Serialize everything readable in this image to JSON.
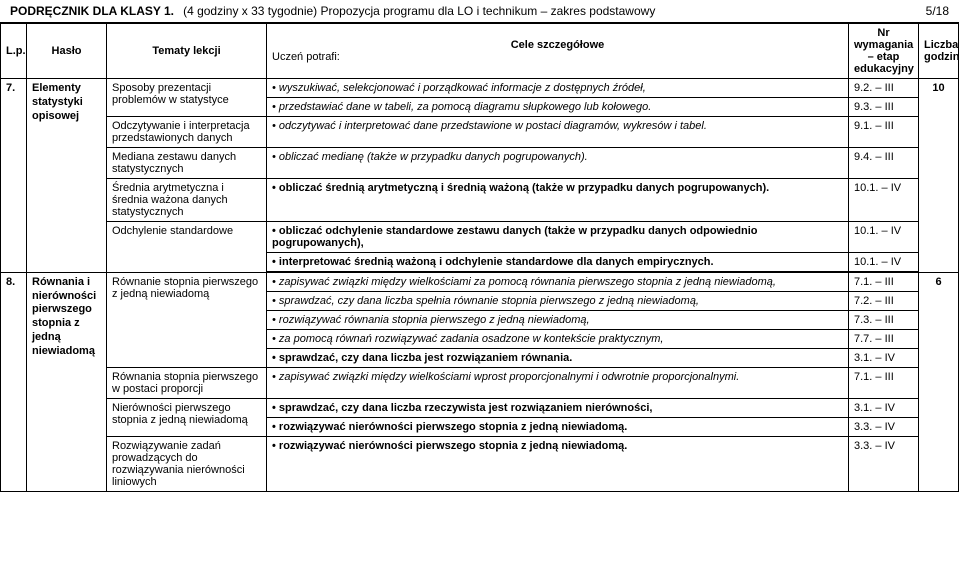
{
  "header": {
    "title_bold": "PODRĘCZNIK DLA KLASY 1.",
    "title_rest": "(4 godziny x 33 tygodnie)  Propozycja programu dla LO i technikum – zakres podstawowy",
    "page_num": "5/18"
  },
  "thead": {
    "lp": "L.p.",
    "haslo": "Hasło",
    "tematy": "Tematy lekcji",
    "cele": "Cele szczegółowe",
    "uczen": "Uczeń potrafi:",
    "wym": "Nr wymagania – etap edukacyjny",
    "lg": "Liczba godzin"
  },
  "sec7": {
    "num": "7.",
    "haslo": "Elementy statystyki opisowej",
    "hours": "10",
    "rows": [
      {
        "topic": "Sposoby prezentacji problemów w statystyce",
        "goals": [
          {
            "text": "wyszukiwać, selekcjonować i porządkować informacje z dostępnych źródeł,",
            "ital": true,
            "req": "9.2. – III"
          },
          {
            "text": "przedstawiać dane w tabeli, za pomocą diagramu słupkowego lub kołowego.",
            "ital": true,
            "req": "9.3. – III"
          }
        ]
      },
      {
        "topic": "Odczytywanie i interpretacja przedstawionych danych",
        "goals": [
          {
            "text": "odczytywać i interpretować dane przedstawione w postaci diagramów, wykresów i tabel.",
            "ital": true,
            "req": "9.1. – III"
          }
        ]
      },
      {
        "topic": "Mediana zestawu danych statystycznych",
        "goals": [
          {
            "text": "obliczać medianę (także w przypadku danych pogrupowanych).",
            "ital": true,
            "req": "9.4. – III"
          }
        ]
      },
      {
        "topic": "Średnia arytmetyczna i średnia ważona danych statystycznych",
        "goals": [
          {
            "text": "obliczać średnią arytmetyczną i średnią ważoną (także w przypadku danych pogrupowanych).",
            "bold": true,
            "req": "10.1. – IV"
          }
        ]
      },
      {
        "topic": "Odchylenie standardowe",
        "goals": [
          {
            "text": "obliczać odchylenie standardowe zestawu danych (także w przypadku danych odpowiednio pogrupowanych),",
            "bold": true,
            "req": "10.1. – IV"
          },
          {
            "text": "interpretować średnią ważoną i odchylenie standardowe dla danych empirycznych.",
            "bold": true,
            "req": "10.1. – IV"
          }
        ]
      }
    ]
  },
  "sec8": {
    "num": "8.",
    "haslo": "Równania i nierówności pierwszego stopnia z jedną niewiadomą",
    "hours": "6",
    "rows": [
      {
        "topic": "Równanie stopnia pierwszego z jedną niewiadomą",
        "goals": [
          {
            "text": "zapisywać związki między wielkościami za pomocą równania pierwszego stopnia z jedną niewiadomą,",
            "ital": true,
            "req": "7.1. – III"
          },
          {
            "text": "sprawdzać, czy dana liczba spełnia równanie stopnia pierwszego z jedną niewiadomą,",
            "ital": true,
            "req": "7.2. – III"
          },
          {
            "text": "rozwiązywać równania stopnia pierwszego z jedną niewiadomą,",
            "ital": true,
            "req": "7.3. – III"
          },
          {
            "text": "za pomocą równań rozwiązywać zadania osadzone w kontekście praktycznym,",
            "ital": true,
            "req": "7.7. – III"
          },
          {
            "text": "sprawdzać, czy dana liczba jest rozwiązaniem równania.",
            "bold": true,
            "req": "3.1. – IV"
          }
        ]
      },
      {
        "topic": "Równania stopnia pierwszego w postaci proporcji",
        "goals": [
          {
            "text": "zapisywać związki między wielkościami wprost proporcjonalnymi i odwrotnie proporcjonalnymi.",
            "ital": true,
            "req": "7.1. – III"
          }
        ]
      },
      {
        "topic": "Nierówności pierwszego stopnia z jedną niewiadomą",
        "goals": [
          {
            "text": "sprawdzać, czy dana liczba rzeczywista jest rozwiązaniem nierówności,",
            "bold": true,
            "req": "3.1. – IV"
          },
          {
            "text": "rozwiązywać nierówności pierwszego stopnia z jedną niewiadomą.",
            "bold": true,
            "req": "3.3. – IV"
          }
        ]
      },
      {
        "topic": "Rozwiązywanie zadań prowadzących do rozwiązywania nierówności liniowych",
        "goals": [
          {
            "text": "rozwiązywać nierówności pierwszego stopnia z jedną niewiadomą.",
            "bold": true,
            "req": "3.3. – IV"
          }
        ]
      }
    ]
  }
}
